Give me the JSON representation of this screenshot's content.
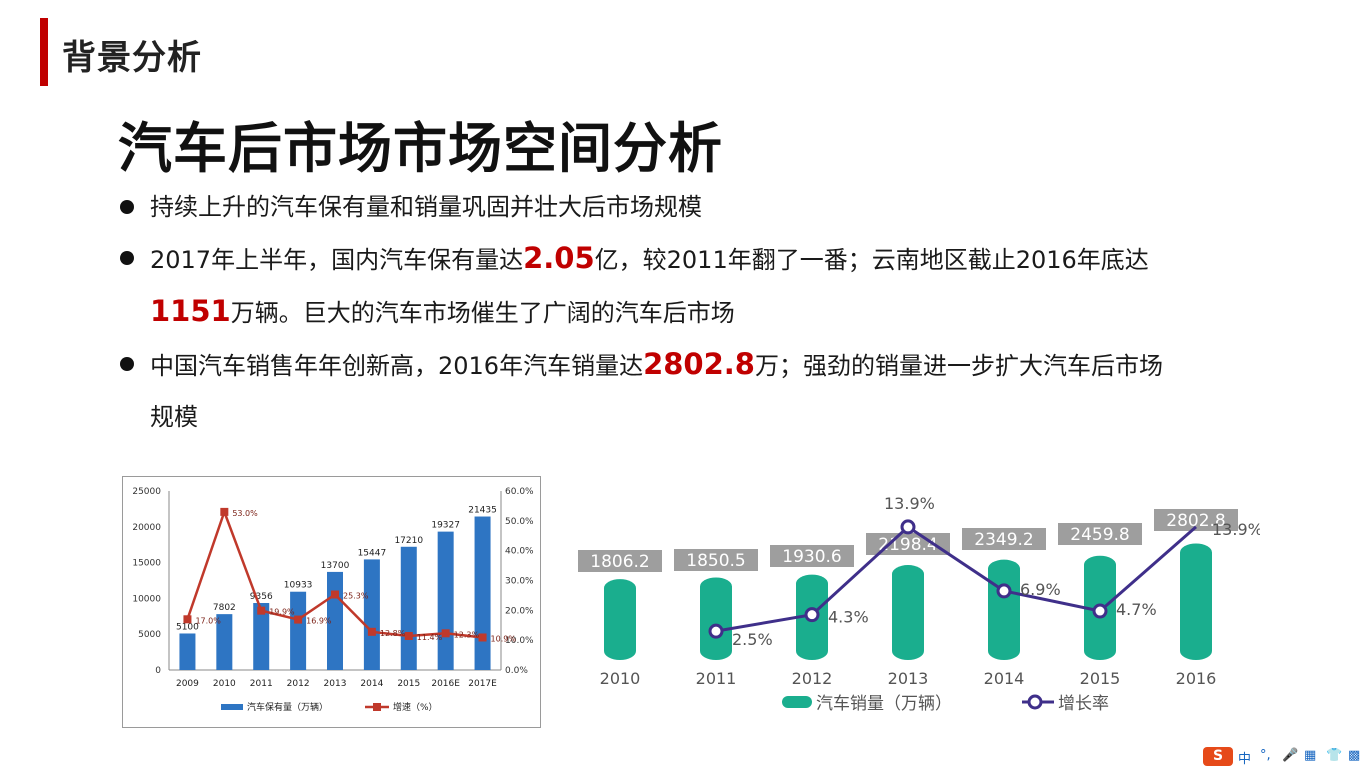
{
  "header": {
    "section_title": "背景分析",
    "accent_color": "#c00000"
  },
  "main_title": "汽车后市场市场空间分析",
  "bullets": [
    {
      "parts": [
        {
          "text": "持续上升的汽车保有量和销量巩固并壮大后市场规模"
        }
      ]
    },
    {
      "parts": [
        {
          "text": "2017年上半年，国内汽车保有量达"
        },
        {
          "text": "2.05",
          "highlight": true
        },
        {
          "text": "亿，较2011年翻了一番；云南地区截止2016年底达"
        },
        {
          "text": "1151",
          "highlight": true,
          "break_before": true
        },
        {
          "text": "万辆。巨大的汽车市场催生了广阔的汽车后市场"
        }
      ]
    },
    {
      "parts": [
        {
          "text": "中国汽车销售年年创新高，2016年汽车销量达"
        },
        {
          "text": "2802.8",
          "highlight": true
        },
        {
          "text": "万；强劲的销量进一步扩大汽车后市场"
        },
        {
          "text": "规模",
          "break_before": true
        }
      ]
    }
  ],
  "chart_data": [
    {
      "type": "bar",
      "categories": [
        "2009",
        "2010",
        "2011",
        "2012",
        "2013",
        "2014",
        "2015",
        "2016E",
        "2017E"
      ],
      "series": [
        {
          "name": "汽车保有量（万辆）",
          "type": "bar",
          "axis": "left",
          "color": "#2e75c3",
          "values": [
            5100,
            7802,
            9356,
            10933,
            13700,
            15447,
            17210,
            19327,
            21435
          ]
        },
        {
          "name": "增速（%）",
          "type": "line",
          "axis": "right",
          "color": "#c0392b",
          "values": [
            17.0,
            53.0,
            19.9,
            16.9,
            25.3,
            12.8,
            11.4,
            12.3,
            10.9
          ]
        }
      ],
      "y_left": {
        "min": 0,
        "max": 25000,
        "ticks": [
          "0",
          "5000",
          "10000",
          "15000",
          "20000",
          "25000"
        ]
      },
      "y_right": {
        "min": 0,
        "max": 60,
        "ticks": [
          "0.0%",
          "10.0%",
          "20.0%",
          "30.0%",
          "40.0%",
          "50.0%",
          "60.0%"
        ]
      },
      "bar_labels": [
        "5100",
        "7802",
        "9356",
        "10933",
        "13700",
        "15447",
        "17210",
        "19327",
        "21435"
      ],
      "line_labels": [
        "17.0%",
        "53.0%",
        "19.9%",
        "16.9%",
        "25.3%",
        "12.8%",
        "11.4%",
        "12.3%",
        "10.9%"
      ],
      "grid": false,
      "legend_position": "bottom"
    },
    {
      "type": "bar",
      "categories": [
        "2010",
        "2011",
        "2012",
        "2013",
        "2014",
        "2015",
        "2016"
      ],
      "series": [
        {
          "name": "汽车销量（万辆）",
          "type": "bar",
          "color": "#1aae8e",
          "values": [
            1806.2,
            1850.5,
            1930.6,
            2198.4,
            2349.2,
            2459.8,
            2802.8
          ]
        },
        {
          "name": "增长率",
          "type": "line",
          "color": "#3f2f8a",
          "values": [
            null,
            2.5,
            4.3,
            13.9,
            6.9,
            4.7,
            13.9
          ]
        }
      ],
      "bar_labels": [
        "1806.2",
        "1850.5",
        "1930.6",
        "2198.4",
        "2349.2",
        "2459.8",
        "2802.8"
      ],
      "line_labels": [
        "",
        "2.5%",
        "4.3%",
        "13.9%",
        "6.9%",
        "4.7%",
        "13.9%"
      ],
      "grid": false,
      "legend_position": "bottom"
    }
  ],
  "ime_bar": {
    "logo": "S",
    "items": [
      "中",
      "°,",
      "🎤",
      "▦",
      "👕",
      "▩"
    ]
  }
}
